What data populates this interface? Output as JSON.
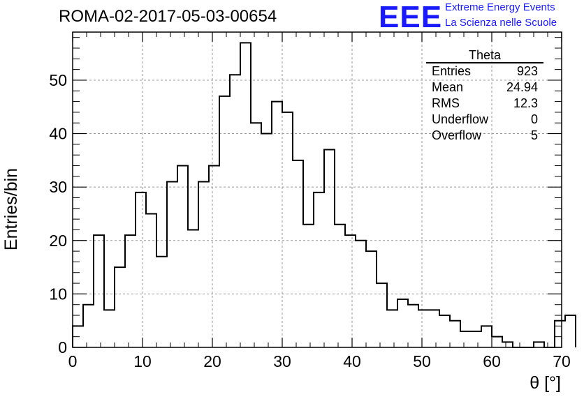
{
  "run_title": "ROMA-02-2017-05-03-00654",
  "logo": {
    "mark": "EEE",
    "line1": "Extreme Energy Events",
    "line2": "La Scienza nelle Scuole",
    "color": "#1a1aff"
  },
  "stats_box": {
    "title": "Theta",
    "rows": [
      {
        "label": "Entries",
        "value": "923"
      },
      {
        "label": "Mean",
        "value": "24.94"
      },
      {
        "label": "RMS",
        "value": "12.3"
      },
      {
        "label": "Underflow",
        "value": "0"
      },
      {
        "label": "Overflow",
        "value": "5"
      }
    ]
  },
  "chart_data": {
    "type": "bar",
    "subtype": "step-histogram",
    "xlabel": "θ [°]",
    "ylabel": "Entries/bin",
    "xlim": [
      0,
      70
    ],
    "ylim": [
      0,
      59
    ],
    "bin_width": 1.5,
    "bin_start": 0,
    "x_ticks": [
      "0",
      "10",
      "20",
      "30",
      "40",
      "50",
      "60",
      "70"
    ],
    "y_ticks": [
      "0",
      "10",
      "20",
      "30",
      "40",
      "50"
    ],
    "grid": true,
    "values": [
      4,
      8,
      21,
      7,
      15,
      21,
      29,
      25,
      17,
      31,
      34,
      22,
      31,
      34,
      47,
      51,
      57,
      42,
      40,
      46,
      44,
      35,
      23,
      29,
      37,
      23,
      21,
      20,
      18,
      12,
      7,
      9,
      8,
      7,
      7,
      6,
      5,
      3,
      3,
      4,
      2,
      1,
      0,
      0,
      1,
      0,
      5,
      6
    ]
  }
}
